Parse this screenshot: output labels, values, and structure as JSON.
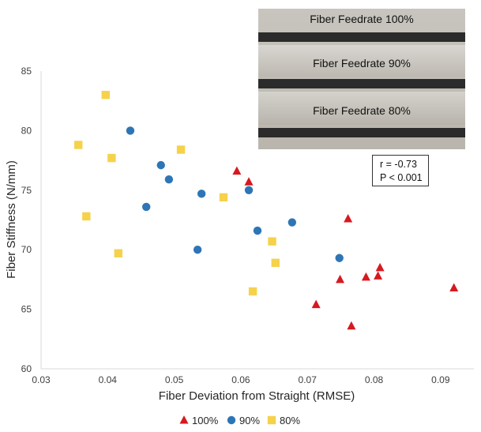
{
  "chart_data": {
    "type": "scatter",
    "xlabel": "Fiber Deviation from Straight (RMSE)",
    "ylabel": "Fiber Stiffness (N/mm)",
    "xlim": [
      0.03,
      0.095
    ],
    "ylim": [
      60,
      85
    ],
    "x_ticks": [
      "0.03",
      "0.04",
      "0.05",
      "0.06",
      "0.07",
      "0.08",
      "0.09"
    ],
    "y_ticks": [
      "60",
      "65",
      "70",
      "75",
      "80",
      "85"
    ],
    "grid": false,
    "legend_position": "bottom",
    "series": [
      {
        "name": "100%",
        "marker": "triangle",
        "color": "#d71920",
        "points": [
          [
            0.0594,
            76.6
          ],
          [
            0.0612,
            75.7
          ],
          [
            0.0761,
            72.6
          ],
          [
            0.0809,
            68.5
          ],
          [
            0.0806,
            67.8
          ],
          [
            0.0788,
            67.7
          ],
          [
            0.0749,
            67.5
          ],
          [
            0.092,
            66.8
          ],
          [
            0.0713,
            65.4
          ],
          [
            0.0766,
            63.6
          ]
        ]
      },
      {
        "name": "90%",
        "marker": "circle",
        "color": "#2e75b6",
        "points": [
          [
            0.0434,
            80.0
          ],
          [
            0.048,
            77.1
          ],
          [
            0.0492,
            75.9
          ],
          [
            0.0541,
            74.7
          ],
          [
            0.0612,
            75.0
          ],
          [
            0.0458,
            73.6
          ],
          [
            0.0677,
            72.3
          ],
          [
            0.0625,
            71.6
          ],
          [
            0.0535,
            70.0
          ],
          [
            0.0748,
            69.3
          ]
        ]
      },
      {
        "name": "80%",
        "marker": "square",
        "color": "#f5d24a",
        "points": [
          [
            0.0397,
            83.0
          ],
          [
            0.0356,
            78.8
          ],
          [
            0.051,
            78.4
          ],
          [
            0.0406,
            77.7
          ],
          [
            0.0574,
            74.4
          ],
          [
            0.0368,
            72.8
          ],
          [
            0.0647,
            70.7
          ],
          [
            0.0416,
            69.7
          ],
          [
            0.0652,
            68.9
          ],
          [
            0.0618,
            66.5
          ]
        ]
      }
    ],
    "annotation_lines": [
      "r = -0.73",
      "P < 0.001"
    ],
    "inset": {
      "labels": [
        "Fiber Feedrate 100%",
        "Fiber Feedrate 90%",
        "Fiber Feedrate 80%"
      ]
    }
  }
}
